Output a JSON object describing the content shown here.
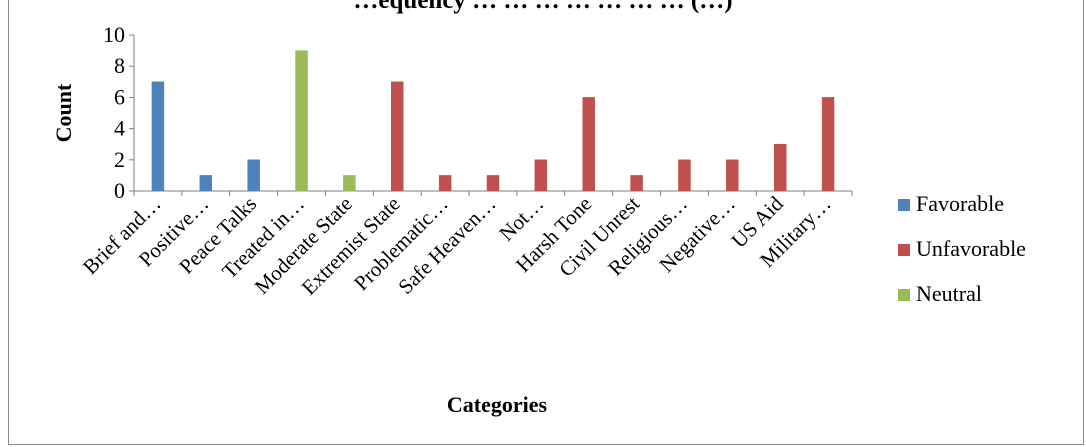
{
  "chart_data": {
    "type": "bar",
    "title": "…equency … … … … … … … (…)",
    "xlabel": "Categories",
    "ylabel": "Count",
    "ylim": [
      0,
      10
    ],
    "yticks": [
      0,
      2,
      4,
      6,
      8,
      10
    ],
    "grid": false,
    "legend_position": "right",
    "categories": [
      "Brief and…",
      "Positive…",
      "Peace Talks",
      "Treated in…",
      "Moderate State",
      "Extremist State",
      "Problematic…",
      "Safe Heaven…",
      "Not…",
      "Harsh Tone",
      "Civil Unrest",
      "Religious…",
      "Negative…",
      "US Aid",
      "Military…"
    ],
    "series": [
      {
        "name": "Favorable",
        "color": "#4f81bd",
        "values": [
          7,
          1,
          2,
          0,
          0,
          0,
          0,
          0,
          0,
          0,
          0,
          0,
          0,
          0,
          0
        ]
      },
      {
        "name": "Unfavorable",
        "color": "#c0504d",
        "values": [
          0,
          0,
          0,
          0,
          0,
          7,
          1,
          1,
          2,
          6,
          1,
          2,
          2,
          3,
          6
        ]
      },
      {
        "name": "Neutral",
        "color": "#9bbb59",
        "values": [
          0,
          0,
          0,
          9,
          1,
          0,
          0,
          0,
          0,
          0,
          0,
          0,
          0,
          0,
          0
        ]
      }
    ]
  }
}
